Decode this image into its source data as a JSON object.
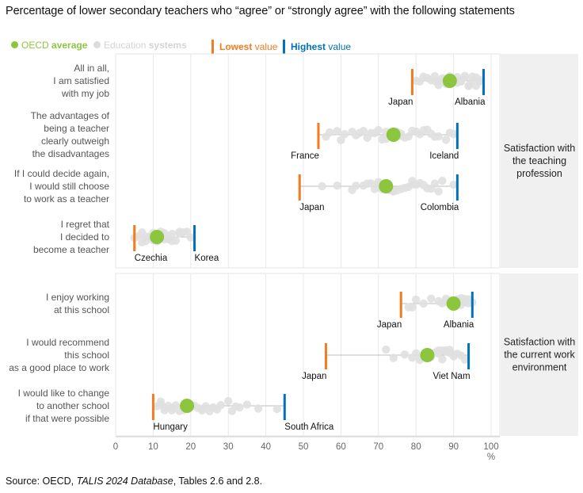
{
  "title": "Percentage of lower secondary teachers who “agree” or “strongly agree” with the following statements",
  "legend": {
    "oecd": {
      "prefix": "OECD ",
      "bold": "average",
      "color": "#8cc63f"
    },
    "systems": {
      "prefix": "Education ",
      "bold": "systems",
      "color": "#dcdcdc"
    },
    "lowest": {
      "bold": "Lowest",
      "suffix": " value",
      "color": "#f47b20"
    },
    "highest": {
      "bold": "Highest",
      "suffix": " value",
      "color": "#0072bc"
    }
  },
  "source": {
    "prefix": "Source: OECD, ",
    "italic": "TALIS 2024 Database",
    "suffix": ", Tables 2.6 and 2.8."
  },
  "colors": {
    "oecd": "#8cc63f",
    "systems": "#e0e0e0",
    "lowest": "#f47b20",
    "highest": "#0072bc",
    "panel_label_bg": "#f0f0f0",
    "grid": "#e8e8e8"
  },
  "chart_data": {
    "type": "dot-range",
    "title": "Percentage of lower secondary teachers who “agree” or “strongly agree” with the following statements",
    "xlabel": "%",
    "xlim": [
      0,
      100
    ],
    "xticks": [
      0,
      10,
      20,
      30,
      40,
      50,
      60,
      70,
      80,
      90,
      100
    ],
    "grid": true,
    "legend_position": "top-left",
    "groups": [
      {
        "label": [
          "Satisfaction with",
          "the teaching",
          "profession"
        ],
        "rows": [
          {
            "statement": [
              "All in all,",
              "I am satisfied",
              "with my job"
            ],
            "oecd_average": 89,
            "lowest": {
              "country": "Japan",
              "value": 79
            },
            "highest": {
              "country": "Albania",
              "value": 98
            },
            "systems": [
              80,
              81,
              82,
              83,
              84,
              85,
              85,
              86,
              86,
              87,
              87,
              88,
              88,
              89,
              90,
              90,
              91,
              91,
              92,
              92,
              93,
              93,
              94,
              94,
              95,
              95,
              96,
              96,
              97,
              97
            ]
          },
          {
            "statement": [
              "The advantages of",
              "being a teacher",
              "clearly outweigh",
              "the disadvantages"
            ],
            "oecd_average": 74,
            "lowest": {
              "country": "France",
              "value": 54
            },
            "highest": {
              "country": "Iceland",
              "value": 91
            },
            "systems": [
              56,
              57,
              59,
              60,
              61,
              63,
              64,
              65,
              66,
              67,
              68,
              69,
              70,
              71,
              72,
              72,
              73,
              75,
              76,
              76,
              77,
              78,
              79,
              80,
              81,
              82,
              83,
              84,
              85,
              86,
              88,
              89,
              90
            ]
          },
          {
            "statement": [
              "If I could decide again,",
              "I would still choose",
              "to work as a teacher"
            ],
            "oecd_average": 72,
            "lowest": {
              "country": "Japan",
              "value": 49
            },
            "highest": {
              "country": "Colombia",
              "value": 91
            },
            "systems": [
              55,
              59,
              63,
              64,
              66,
              67,
              68,
              69,
              70,
              70,
              71,
              73,
              74,
              74,
              75,
              76,
              77,
              78,
              79,
              79,
              80,
              81,
              82,
              83,
              84,
              85,
              86,
              87,
              90
            ]
          },
          {
            "statement": [
              "I regret that",
              "I decided to",
              "become a teacher"
            ],
            "oecd_average": 11,
            "lowest": {
              "country": "Czechia",
              "value": 5
            },
            "highest": {
              "country": "Korea",
              "value": 21
            },
            "systems": [
              5,
              6,
              7,
              7,
              8,
              8,
              9,
              9,
              10,
              10,
              11,
              12,
              12,
              13,
              13,
              14,
              14,
              15,
              15,
              16,
              17,
              17,
              18,
              19,
              20
            ]
          }
        ]
      },
      {
        "label": [
          "Satisfaction with",
          "the current work",
          "environment"
        ],
        "rows": [
          {
            "statement": [
              "I enjoy working",
              "at this school"
            ],
            "oecd_average": 90,
            "lowest": {
              "country": "Japan",
              "value": 76
            },
            "highest": {
              "country": "Albania",
              "value": 95
            },
            "systems": [
              78,
              79,
              80,
              82,
              84,
              86,
              87,
              88,
              88,
              89,
              89,
              90,
              91,
              91,
              92,
              92,
              93,
              93,
              94,
              94,
              95
            ]
          },
          {
            "statement": [
              "I would recommend",
              "this school",
              "as a good place to work"
            ],
            "oecd_average": 83,
            "lowest": {
              "country": "Japan",
              "value": 56
            },
            "highest": {
              "country": "Viet Nam",
              "value": 94
            },
            "systems": [
              72,
              74,
              77,
              79,
              80,
              81,
              82,
              84,
              85,
              86,
              86,
              87,
              87,
              88,
              88,
              89,
              89,
              90,
              90,
              91,
              92,
              93
            ]
          },
          {
            "statement": [
              "I would like to change",
              "to another school",
              "if that were possible"
            ],
            "oecd_average": 19,
            "lowest": {
              "country": "Hungary",
              "value": 10
            },
            "highest": {
              "country": "South Africa",
              "value": 45
            },
            "systems": [
              11,
              12,
              12,
              13,
              13,
              14,
              15,
              15,
              16,
              17,
              18,
              20,
              21,
              22,
              23,
              23,
              24,
              25,
              26,
              27,
              28,
              30,
              31,
              32,
              33,
              35,
              38,
              43
            ]
          }
        ]
      }
    ]
  }
}
